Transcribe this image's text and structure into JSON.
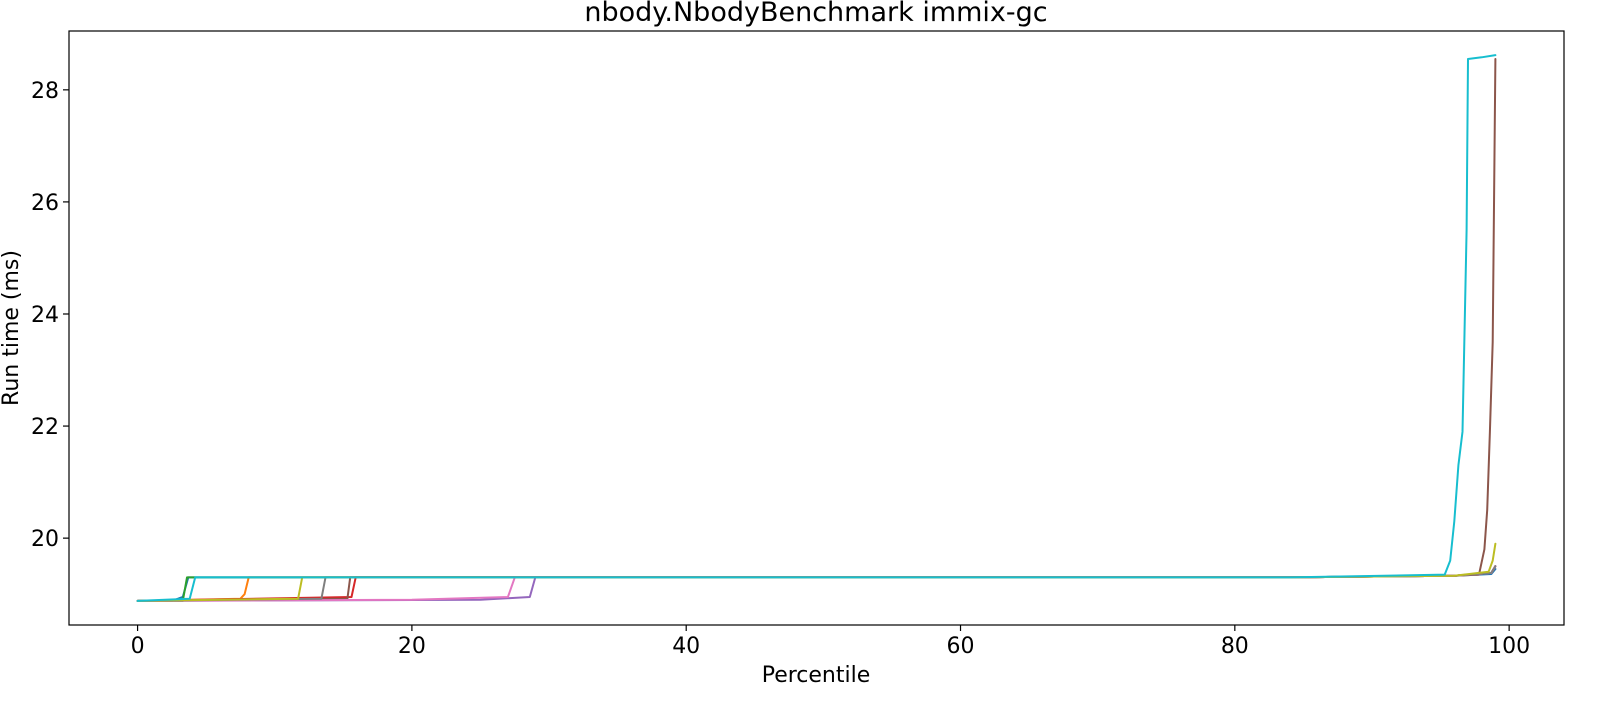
{
  "chart_data": {
    "type": "line",
    "title": "nbody.NbodyBenchmark immix-gc",
    "xlabel": "Percentile",
    "ylabel": "Run time (ms)",
    "xlim": [
      -5,
      104
    ],
    "ylim": [
      18.45,
      29.05
    ],
    "xticks": [
      0,
      20,
      40,
      60,
      80,
      100
    ],
    "yticks": [
      20,
      22,
      24,
      26,
      28
    ],
    "grid": false,
    "legend": "none",
    "series": [
      {
        "color": "#1f77b4",
        "points": [
          [
            0,
            18.88
          ],
          [
            2.5,
            18.88
          ],
          [
            3.3,
            18.95
          ],
          [
            3.7,
            19.3
          ],
          [
            84,
            19.3
          ],
          [
            96,
            19.33
          ],
          [
            98.7,
            19.36
          ],
          [
            99,
            19.45
          ]
        ]
      },
      {
        "color": "#ff7f0e",
        "points": [
          [
            0,
            18.88
          ],
          [
            7.5,
            18.92
          ],
          [
            7.8,
            19.0
          ],
          [
            8.1,
            19.3
          ],
          [
            84,
            19.3
          ],
          [
            96,
            19.33
          ],
          [
            98.7,
            19.38
          ],
          [
            99,
            19.5
          ]
        ]
      },
      {
        "color": "#2ca02c",
        "points": [
          [
            0,
            18.88
          ],
          [
            3.3,
            18.88
          ],
          [
            3.6,
            19.3
          ],
          [
            84,
            19.3
          ],
          [
            96,
            19.33
          ],
          [
            98.7,
            19.38
          ],
          [
            99,
            19.5
          ]
        ]
      },
      {
        "color": "#d62728",
        "points": [
          [
            0,
            18.88
          ],
          [
            15.6,
            18.95
          ],
          [
            15.9,
            19.3
          ],
          [
            84,
            19.3
          ],
          [
            96,
            19.33
          ],
          [
            98.7,
            19.38
          ],
          [
            99,
            19.5
          ]
        ]
      },
      {
        "color": "#9467bd",
        "points": [
          [
            0,
            18.88
          ],
          [
            25,
            18.9
          ],
          [
            28.6,
            18.95
          ],
          [
            29,
            19.3
          ],
          [
            84,
            19.3
          ],
          [
            96,
            19.33
          ],
          [
            98.7,
            19.38
          ],
          [
            99,
            19.5
          ]
        ]
      },
      {
        "color": "#8c564b",
        "points": [
          [
            0,
            18.88
          ],
          [
            15.3,
            18.92
          ],
          [
            15.5,
            19.3
          ],
          [
            84,
            19.3
          ],
          [
            96,
            19.33
          ],
          [
            97.8,
            19.35
          ],
          [
            98.2,
            19.8
          ],
          [
            98.4,
            20.5
          ],
          [
            98.6,
            21.9
          ],
          [
            98.8,
            23.5
          ],
          [
            99,
            28.55
          ]
        ]
      },
      {
        "color": "#e377c2",
        "points": [
          [
            0,
            18.88
          ],
          [
            20,
            18.9
          ],
          [
            27,
            18.95
          ],
          [
            27.5,
            19.3
          ],
          [
            84,
            19.3
          ],
          [
            96,
            19.33
          ],
          [
            98.7,
            19.38
          ],
          [
            99,
            19.5
          ]
        ]
      },
      {
        "color": "#7f7f7f",
        "points": [
          [
            0,
            18.88
          ],
          [
            13.4,
            18.92
          ],
          [
            13.7,
            19.3
          ],
          [
            84,
            19.3
          ],
          [
            96,
            19.33
          ],
          [
            98.7,
            19.38
          ],
          [
            99,
            19.5
          ]
        ]
      },
      {
        "color": "#bcbd22",
        "points": [
          [
            0,
            18.88
          ],
          [
            11.7,
            18.92
          ],
          [
            12,
            19.3
          ],
          [
            84,
            19.3
          ],
          [
            96,
            19.33
          ],
          [
            98.5,
            19.4
          ],
          [
            98.8,
            19.6
          ],
          [
            99,
            19.9
          ]
        ]
      },
      {
        "color": "#17becf",
        "points": [
          [
            0,
            18.88
          ],
          [
            3.8,
            18.92
          ],
          [
            4.2,
            19.3
          ],
          [
            84,
            19.3
          ],
          [
            95.3,
            19.35
          ],
          [
            95.7,
            19.6
          ],
          [
            96,
            20.3
          ],
          [
            96.3,
            21.3
          ],
          [
            96.6,
            21.9
          ],
          [
            96.9,
            25.5
          ],
          [
            97,
            28.55
          ],
          [
            98,
            28.58
          ],
          [
            99,
            28.62
          ]
        ]
      }
    ]
  }
}
